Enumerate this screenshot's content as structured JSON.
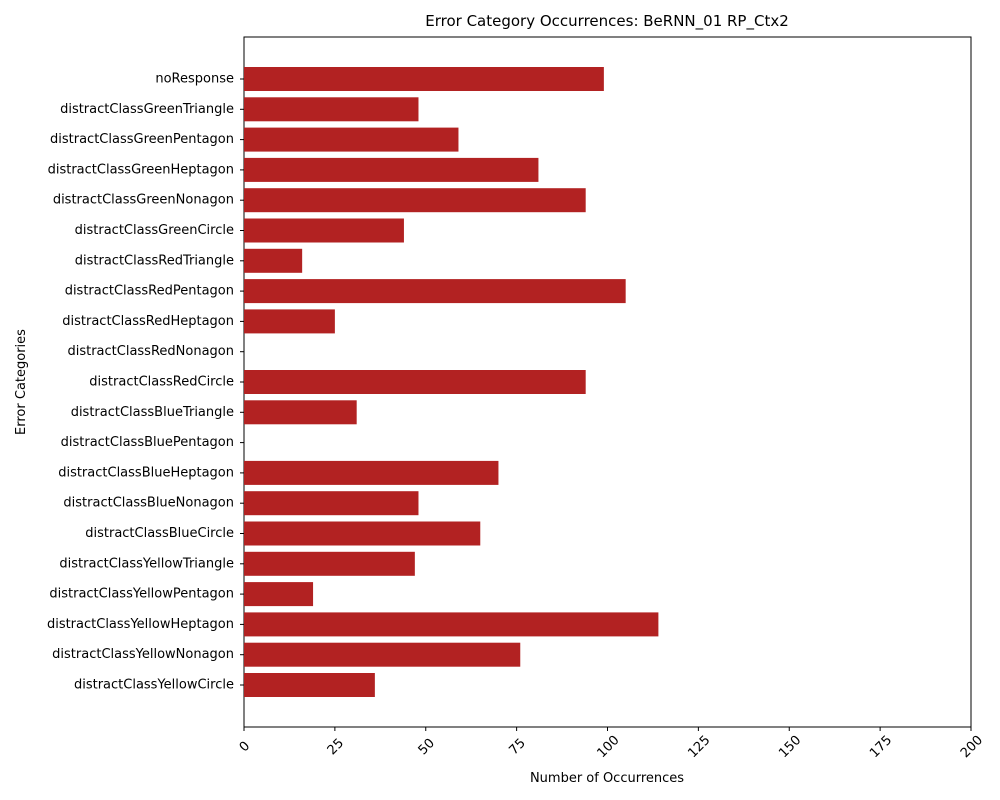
{
  "chart_data": {
    "type": "bar",
    "orientation": "horizontal",
    "title": "Error Category Occurrences: BeRNN_01 RP_Ctx2",
    "xlabel": "Number of Occurrences",
    "ylabel": "Error Categories",
    "xlim": [
      0,
      200
    ],
    "xticks": [
      0,
      25,
      50,
      75,
      100,
      125,
      150,
      175,
      200
    ],
    "xtick_rotation": 45,
    "grid": false,
    "legend": "none",
    "bar_color": "#b22222",
    "categories": [
      "noResponse",
      "distractClassGreenTriangle",
      "distractClassGreenPentagon",
      "distractClassGreenHeptagon",
      "distractClassGreenNonagon",
      "distractClassGreenCircle",
      "distractClassRedTriangle",
      "distractClassRedPentagon",
      "distractClassRedHeptagon",
      "distractClassRedNonagon",
      "distractClassRedCircle",
      "distractClassBlueTriangle",
      "distractClassBluePentagon",
      "distractClassBlueHeptagon",
      "distractClassBlueNonagon",
      "distractClassBlueCircle",
      "distractClassYellowTriangle",
      "distractClassYellowPentagon",
      "distractClassYellowHeptagon",
      "distractClassYellowNonagon",
      "distractClassYellowCircle"
    ],
    "values": [
      99,
      48,
      59,
      81,
      94,
      44,
      16,
      105,
      25,
      0,
      94,
      31,
      0,
      70,
      48,
      65,
      47,
      19,
      114,
      76,
      36
    ]
  }
}
